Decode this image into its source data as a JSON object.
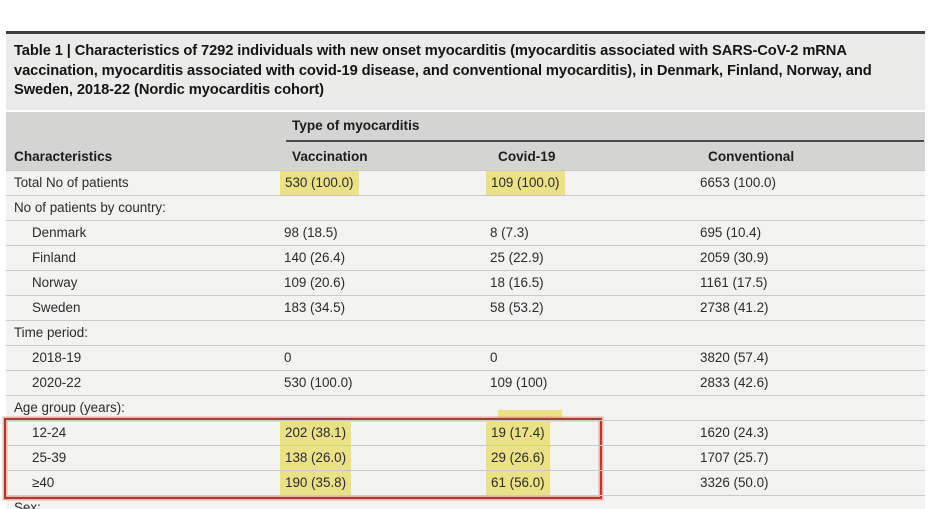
{
  "title": "Table 1 | Characteristics of 7292 individuals with new onset myocarditis (myocarditis associated with SARS-CoV-2 mRNA vaccination, myocarditis associated with covid-19 disease, and conventional myocarditis), in Denmark, Finland, Norway, and Sweden, 2018-22 (Nordic myocarditis cohort)",
  "table": {
    "spanner": "Type of myocarditis",
    "columns": [
      "Characteristics",
      "Vaccination",
      "Covid-19",
      "Conventional"
    ],
    "rows": [
      {
        "label": "Total No of patients",
        "indent": false,
        "values": [
          "530 (100.0)",
          "109 (100.0)",
          "6653 (100.0)"
        ],
        "hl": [
          true,
          true,
          false
        ]
      },
      {
        "label": "No of patients by country:",
        "indent": false,
        "values": [
          "",
          "",
          ""
        ],
        "hl": [
          false,
          false,
          false
        ]
      },
      {
        "label": "Denmark",
        "indent": true,
        "values": [
          "98 (18.5)",
          "8 (7.3)",
          "695 (10.4)"
        ],
        "hl": [
          false,
          false,
          false
        ]
      },
      {
        "label": "Finland",
        "indent": true,
        "values": [
          "140 (26.4)",
          "25 (22.9)",
          "2059 (30.9)"
        ],
        "hl": [
          false,
          false,
          false
        ]
      },
      {
        "label": "Norway",
        "indent": true,
        "values": [
          "109 (20.6)",
          "18 (16.5)",
          "1161 (17.5)"
        ],
        "hl": [
          false,
          false,
          false
        ]
      },
      {
        "label": "Sweden",
        "indent": true,
        "values": [
          "183 (34.5)",
          "58 (53.2)",
          "2738 (41.2)"
        ],
        "hl": [
          false,
          false,
          false
        ]
      },
      {
        "label": "Time period:",
        "indent": false,
        "values": [
          "",
          "",
          ""
        ],
        "hl": [
          false,
          false,
          false
        ]
      },
      {
        "label": "2018-19",
        "indent": true,
        "values": [
          "0",
          "0",
          "3820 (57.4)"
        ],
        "hl": [
          false,
          false,
          false
        ]
      },
      {
        "label": "2020-22",
        "indent": true,
        "values": [
          "530 (100.0)",
          "109 (100)",
          "2833 (42.6)"
        ],
        "hl": [
          false,
          false,
          false
        ]
      },
      {
        "label": "Age group (years):",
        "indent": false,
        "values": [
          "",
          "",
          ""
        ],
        "hl": [
          false,
          false,
          false
        ]
      },
      {
        "label": "12-24",
        "indent": true,
        "values": [
          "202 (38.1)",
          "19 (17.4)",
          "1620 (24.3)"
        ],
        "hl": [
          true,
          true,
          false
        ]
      },
      {
        "label": "25-39",
        "indent": true,
        "values": [
          "138 (26.0)",
          "29 (26.6)",
          "1707 (25.7)"
        ],
        "hl": [
          true,
          true,
          false
        ]
      },
      {
        "label": "≥40",
        "indent": true,
        "values": [
          "190 (35.8)",
          "61 (56.0)",
          "3326 (50.0)"
        ],
        "hl": [
          true,
          true,
          false
        ]
      },
      {
        "label": "Sex:",
        "indent": false,
        "values": [
          "",
          "",
          ""
        ],
        "hl": [
          false,
          false,
          false
        ]
      }
    ]
  },
  "annotations": {
    "highlight_color": "#ebe187",
    "red_box_color": "#b4392d",
    "red_box_rows": [
      "12-24",
      "25-39",
      "≥40"
    ]
  }
}
